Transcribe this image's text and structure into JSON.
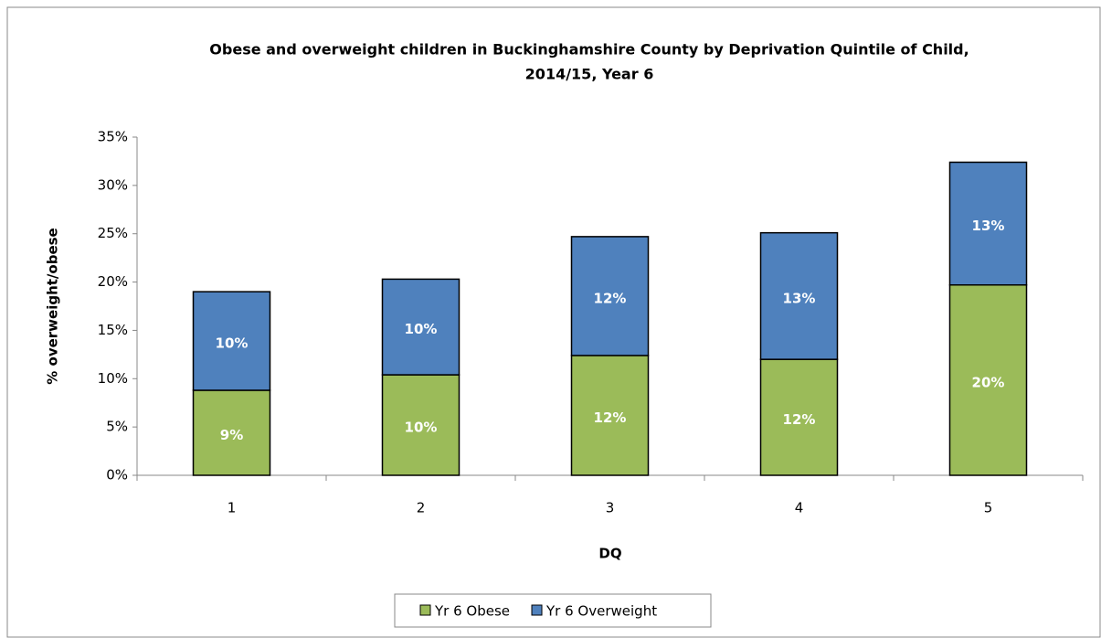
{
  "chart_data": {
    "type": "stacked-bar",
    "title": [
      "Obese and overweight children in Buckinghamshire County by Deprivation Quintile of Child,",
      "2014/15, Year 6"
    ],
    "x_label": "DQ",
    "y_label": "% overweight/obese",
    "categories": [
      "1",
      "2",
      "3",
      "4",
      "5"
    ],
    "series": [
      {
        "name": "Yr 6 Obese",
        "color": "#9bbb59",
        "values": [
          8.8,
          10.4,
          12.4,
          12.0,
          19.7
        ],
        "value_labels": [
          "9%",
          "10%",
          "12%",
          "12%",
          "20%"
        ]
      },
      {
        "name": "Yr 6 Overweight",
        "color": "#4f81bd",
        "values": [
          10.2,
          9.9,
          12.3,
          13.1,
          12.7
        ],
        "value_labels": [
          "10%",
          "10%",
          "12%",
          "13%",
          "13%"
        ]
      }
    ],
    "ylim": [
      0,
      35
    ],
    "yticks": [
      {
        "value": 0,
        "label": "0%"
      },
      {
        "value": 5,
        "label": "5%"
      },
      {
        "value": 10,
        "label": "10%"
      },
      {
        "value": 15,
        "label": "15%"
      },
      {
        "value": 20,
        "label": "20%"
      },
      {
        "value": 25,
        "label": "25%"
      },
      {
        "value": 30,
        "label": "30%"
      },
      {
        "value": 35,
        "label": "35%"
      }
    ],
    "grid": false,
    "legend": "bottom"
  }
}
